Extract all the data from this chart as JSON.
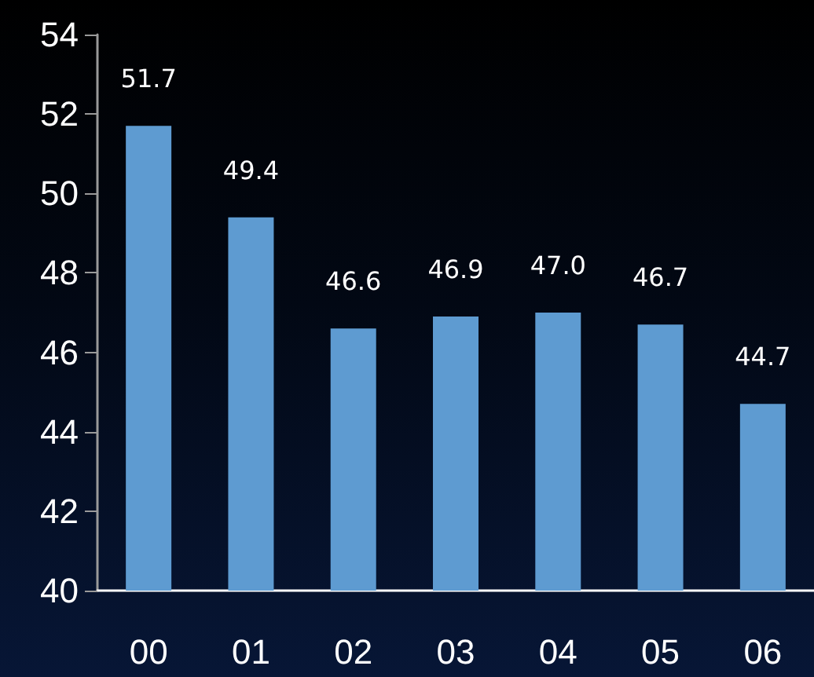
{
  "chart_data": {
    "type": "bar",
    "categories": [
      "00",
      "01",
      "02",
      "03",
      "04",
      "05",
      "06"
    ],
    "values": [
      51.7,
      49.4,
      46.6,
      46.9,
      47.0,
      46.7,
      44.7
    ],
    "value_labels": [
      "51.7",
      "49.4",
      "46.6",
      "46.9",
      "47.0",
      "46.7",
      "44.7"
    ],
    "color": "#5e9bd1",
    "ylim": [
      40,
      54
    ],
    "yticks": [
      40,
      42,
      44,
      46,
      48,
      50,
      52,
      54
    ]
  }
}
